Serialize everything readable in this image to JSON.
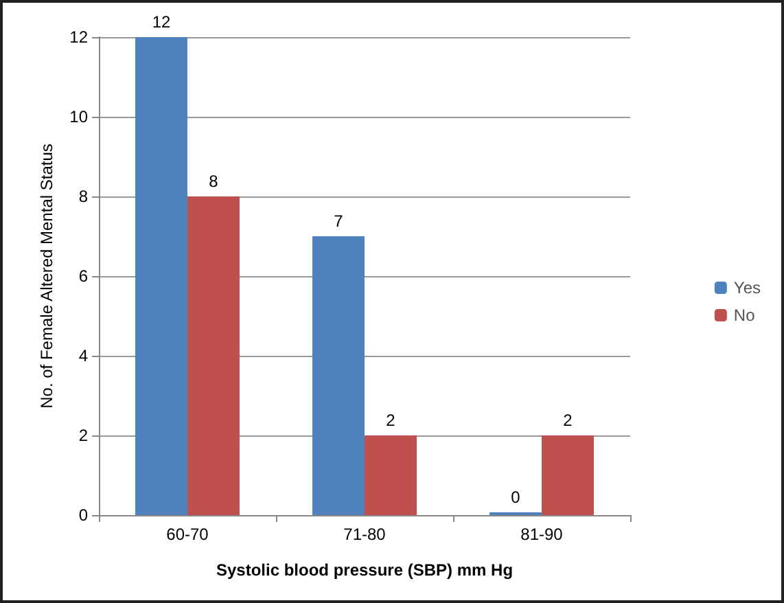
{
  "chart_data": {
    "type": "bar",
    "xlabel": "Systolic blood pressure (SBP) mm Hg",
    "ylabel": "No. of Female Altered Mental Status",
    "categories": [
      "60-70",
      "71-80",
      "81-90"
    ],
    "series": [
      {
        "name": "Yes",
        "color": "#4f81bd",
        "values": [
          12,
          7,
          0
        ]
      },
      {
        "name": "No",
        "color": "#c0504d",
        "values": [
          8,
          2,
          2
        ]
      }
    ],
    "ylim": [
      0,
      12
    ],
    "yticks": [
      0,
      2,
      4,
      6,
      8,
      10,
      12
    ],
    "grid": "y",
    "legend": "right",
    "data_labels": true
  }
}
